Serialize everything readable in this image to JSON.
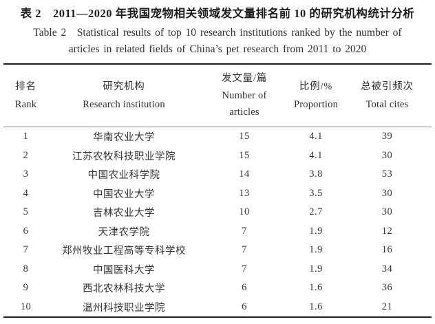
{
  "title": {
    "zh": "表 2　2011—2020 年我国宠物相关领域发文量排名前 10 的研究机构统计分析",
    "en_line1": "Table 2　Statistical results of top 10 research institutions ranked by the number of",
    "en_line2": "articles in related fields of China’s pet research from 2011 to 2020"
  },
  "table": {
    "header": {
      "rank_zh": "排名",
      "rank_en": "Rank",
      "institution_zh": "研究机构",
      "institution_en": "Research institution",
      "articles_zh": "发文量/篇",
      "articles_en1": "Number of",
      "articles_en2": "articles",
      "proportion_zh": "比例/%",
      "proportion_en": "Proportion",
      "cites_zh": "总被引频次",
      "cites_en": "Total cites"
    },
    "rows": [
      {
        "rank": "1",
        "institution": "华南农业大学",
        "articles": "15",
        "proportion": "4.1",
        "cites": "39"
      },
      {
        "rank": "2",
        "institution": "江苏农牧科技职业学院",
        "articles": "15",
        "proportion": "4.1",
        "cites": "30"
      },
      {
        "rank": "3",
        "institution": "中国农业科学院",
        "articles": "14",
        "proportion": "3.8",
        "cites": "53"
      },
      {
        "rank": "4",
        "institution": "中国农业大学",
        "articles": "13",
        "proportion": "3.5",
        "cites": "30"
      },
      {
        "rank": "5",
        "institution": "吉林农业大学",
        "articles": "10",
        "proportion": "2.7",
        "cites": "30"
      },
      {
        "rank": "6",
        "institution": "天津农学院",
        "articles": "7",
        "proportion": "1.9",
        "cites": "12"
      },
      {
        "rank": "7",
        "institution": "郑州牧业工程高等专科学校",
        "articles": "7",
        "proportion": "1.9",
        "cites": "16"
      },
      {
        "rank": "8",
        "institution": "中国医科大学",
        "articles": "7",
        "proportion": "1.9",
        "cites": "34"
      },
      {
        "rank": "9",
        "institution": "西北农林科技大学",
        "articles": "6",
        "proportion": "1.6",
        "cites": "36"
      },
      {
        "rank": "10",
        "institution": "温州科技职业学院",
        "articles": "6",
        "proportion": "1.6",
        "cites": "21"
      }
    ]
  },
  "chart_data": {
    "type": "table",
    "title": "表2 2011—2020年我国宠物相关领域发文量排名前10的研究机构统计分析 / Table 2 Statistical results of top 10 research institutions ranked by the number of articles in related fields of China's pet research from 2011 to 2020",
    "columns": [
      "排名 Rank",
      "研究机构 Research institution",
      "发文量/篇 Number of articles",
      "比例/% Proportion",
      "总被引频次 Total cites"
    ],
    "rows": [
      [
        1,
        "华南农业大学",
        15,
        4.1,
        39
      ],
      [
        2,
        "江苏农牧科技职业学院",
        15,
        4.1,
        30
      ],
      [
        3,
        "中国农业科学院",
        14,
        3.8,
        53
      ],
      [
        4,
        "中国农业大学",
        13,
        3.5,
        30
      ],
      [
        5,
        "吉林农业大学",
        10,
        2.7,
        30
      ],
      [
        6,
        "天津农学院",
        7,
        1.9,
        12
      ],
      [
        7,
        "郑州牧业工程高等专科学校",
        7,
        1.9,
        16
      ],
      [
        8,
        "中国医科大学",
        7,
        1.9,
        34
      ],
      [
        9,
        "西北农林科技大学",
        6,
        1.6,
        36
      ],
      [
        10,
        "温州科技职业学院",
        6,
        1.6,
        21
      ]
    ]
  }
}
